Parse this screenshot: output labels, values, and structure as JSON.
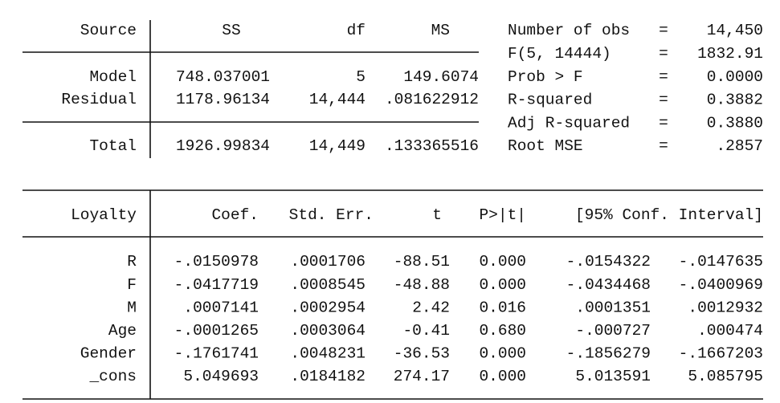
{
  "anova": {
    "header": [
      "Source",
      "SS",
      "df",
      "MS"
    ],
    "rows": [
      [
        "Model",
        "748.037001",
        "5",
        "149.6074"
      ],
      [
        "Residual",
        "1178.96134",
        "14,444",
        ".081622912"
      ],
      [
        "Total",
        "1926.99834",
        "14,449",
        ".133365516"
      ]
    ]
  },
  "stats": [
    {
      "label": "Number of obs",
      "sep": "=",
      "value": "14,450"
    },
    {
      "label": "F(5, 14444)",
      "sep": "=",
      "value": "1832.91"
    },
    {
      "label": "Prob > F",
      "sep": "=",
      "value": "0.0000"
    },
    {
      "label": "R-squared",
      "sep": "=",
      "value": "0.3882"
    },
    {
      "label": "Adj R-squared",
      "sep": "=",
      "value": "0.3880"
    },
    {
      "label": "Root MSE",
      "sep": "=",
      "value": ".2857"
    }
  ],
  "coef": {
    "header": [
      "Loyalty",
      "Coef.",
      "Std. Err.",
      "t",
      "P>|t|",
      "[95% Conf. Interval]"
    ],
    "rows": [
      [
        "R",
        "-.0150978",
        ".0001706",
        "-88.51",
        "0.000",
        "-.0154322",
        "-.0147635"
      ],
      [
        "F",
        "-.0417719",
        ".0008545",
        "-48.88",
        "0.000",
        "-.0434468",
        "-.0400969"
      ],
      [
        "M",
        ".0007141",
        ".0002954",
        "2.42",
        "0.016",
        ".0001351",
        ".0012932"
      ],
      [
        "Age",
        "-.0001265",
        ".0003064",
        "-0.41",
        "0.680",
        "-.000727",
        ".000474"
      ],
      [
        "Gender",
        "-.1761741",
        ".0048231",
        "-36.53",
        "0.000",
        "-.1856279",
        "-.1667203"
      ],
      [
        "_cons",
        "5.049693",
        ".0184182",
        "274.17",
        "0.000",
        "5.013591",
        "5.085795"
      ]
    ]
  }
}
